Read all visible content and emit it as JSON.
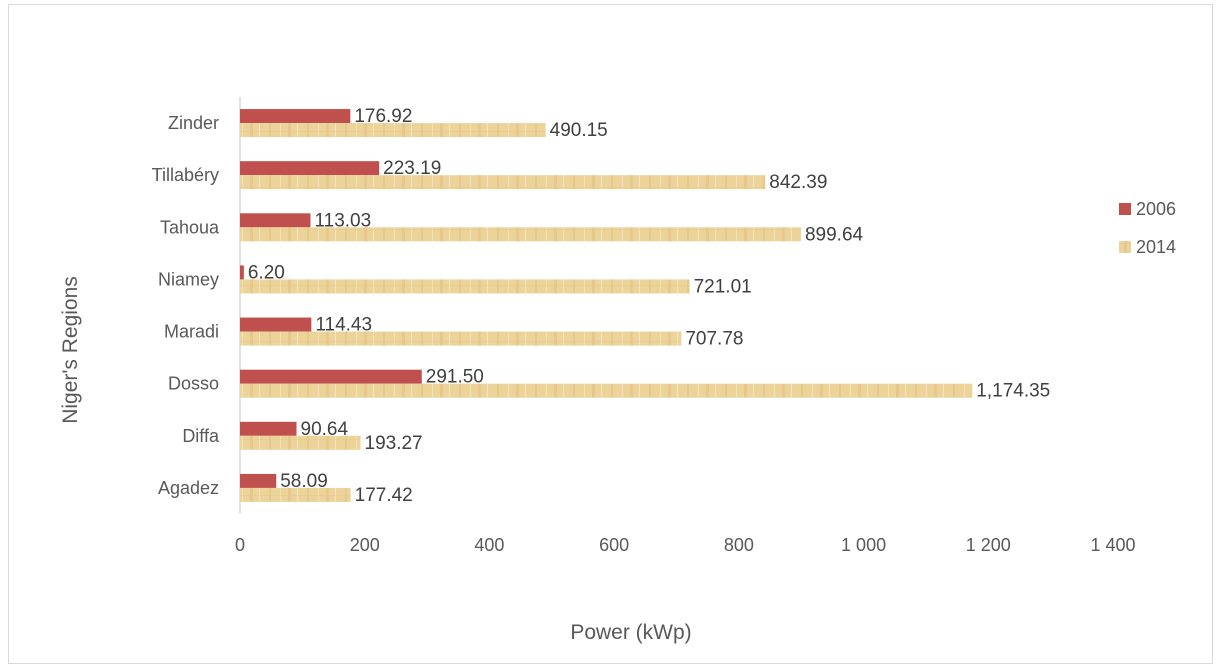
{
  "chart_data": {
    "type": "bar",
    "orientation": "horizontal",
    "categories": [
      "Agadez",
      "Diffa",
      "Dosso",
      "Maradi",
      "Niamey",
      "Tahoua",
      "Tillabéry",
      "Zinder"
    ],
    "series": [
      {
        "name": "2006",
        "color": "#c0504d",
        "values": [
          58.09,
          90.64,
          291.5,
          114.43,
          6.2,
          113.03,
          223.19,
          176.92
        ],
        "labels": [
          "58.09",
          "90.64",
          "291.50",
          "114.43",
          "6.20",
          "113.03",
          "223.19",
          "176.92"
        ]
      },
      {
        "name": "2014",
        "color": "#ecd39a",
        "values": [
          177.42,
          193.27,
          1174.35,
          707.78,
          721.01,
          899.64,
          842.39,
          490.15
        ],
        "labels": [
          "177.42",
          "193.27",
          "1,174.35",
          "707.78",
          "721.01",
          "899.64",
          "842.39",
          "490.15"
        ]
      }
    ],
    "xlabel": "Power (kWp)",
    "ylabel": "Niger's Regions",
    "xlim": [
      0,
      1400
    ],
    "xticks": [
      0,
      200,
      400,
      600,
      800,
      1000,
      1200,
      1400
    ],
    "xtick_labels": [
      "0",
      "200",
      "400",
      "600",
      "800",
      "1 000",
      "1 200",
      "1 400"
    ],
    "grid": false,
    "legend_position": "right"
  }
}
